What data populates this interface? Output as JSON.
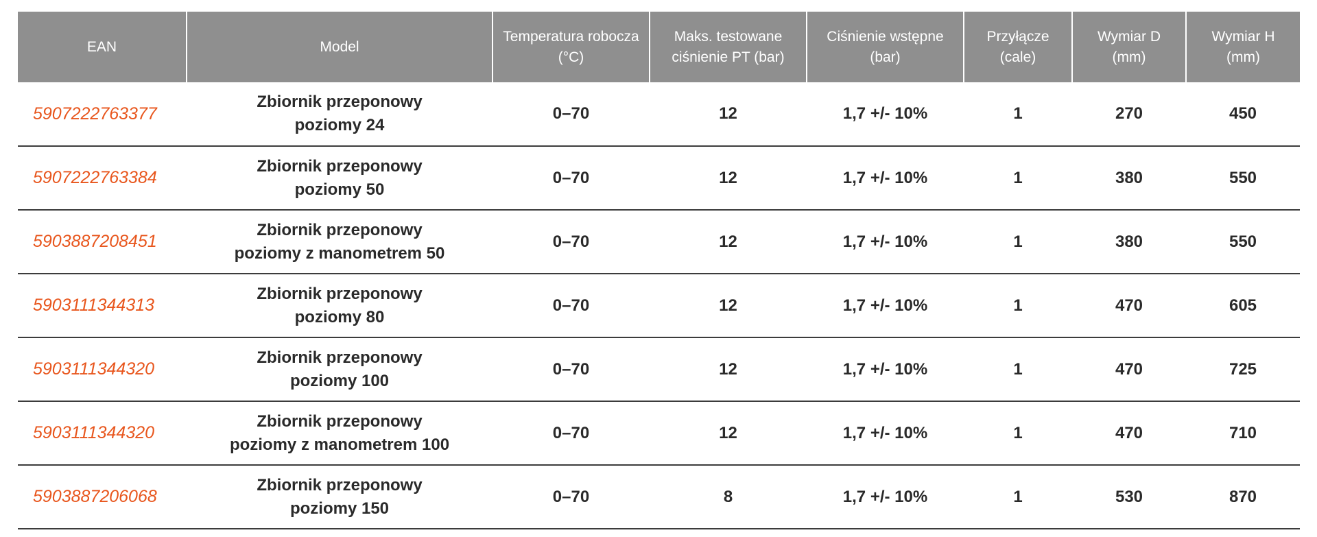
{
  "table": {
    "headers": [
      {
        "line1": "EAN",
        "line2": ""
      },
      {
        "line1": "Model",
        "line2": ""
      },
      {
        "line1": "Temperatura robocza",
        "line2": "(°C)"
      },
      {
        "line1": "Maks. testowane",
        "line2": "ciśnienie PT (bar)"
      },
      {
        "line1": "Ciśnienie wstępne",
        "line2": "(bar)"
      },
      {
        "line1": "Przyłącze",
        "line2": "(cale)"
      },
      {
        "line1": "Wymiar D",
        "line2": "(mm)"
      },
      {
        "line1": "Wymiar H",
        "line2": "(mm)"
      }
    ],
    "rows": [
      {
        "ean": "5907222763377",
        "model_line1": "Zbiornik przeponowy",
        "model_line2": "poziomy 24",
        "temperature": "0–70",
        "max_pressure": "12",
        "pre_pressure": "1,7 +/- 10%",
        "connection": "1",
        "dim_d": "270",
        "dim_h": "450"
      },
      {
        "ean": "5907222763384",
        "model_line1": "Zbiornik przeponowy",
        "model_line2": "poziomy 50",
        "temperature": "0–70",
        "max_pressure": "12",
        "pre_pressure": "1,7 +/- 10%",
        "connection": "1",
        "dim_d": "380",
        "dim_h": "550"
      },
      {
        "ean": "5903887208451",
        "model_line1": "Zbiornik przeponowy",
        "model_line2": "poziomy z manometrem 50",
        "temperature": "0–70",
        "max_pressure": "12",
        "pre_pressure": "1,7 +/- 10%",
        "connection": "1",
        "dim_d": "380",
        "dim_h": "550"
      },
      {
        "ean": "5903111344313",
        "model_line1": "Zbiornik przeponowy",
        "model_line2": "poziomy 80",
        "temperature": "0–70",
        "max_pressure": "12",
        "pre_pressure": "1,7 +/- 10%",
        "connection": "1",
        "dim_d": "470",
        "dim_h": "605"
      },
      {
        "ean": "5903111344320",
        "model_line1": "Zbiornik przeponowy",
        "model_line2": "poziomy 100",
        "temperature": "0–70",
        "max_pressure": "12",
        "pre_pressure": "1,7 +/- 10%",
        "connection": "1",
        "dim_d": "470",
        "dim_h": "725"
      },
      {
        "ean": "5903111344320",
        "model_line1": "Zbiornik przeponowy",
        "model_line2": "poziomy z manometrem 100",
        "temperature": "0–70",
        "max_pressure": "12",
        "pre_pressure": "1,7 +/- 10%",
        "connection": "1",
        "dim_d": "470",
        "dim_h": "710"
      },
      {
        "ean": "5903887206068",
        "model_line1": "Zbiornik przeponowy",
        "model_line2": "poziomy 150",
        "temperature": "0–70",
        "max_pressure": "8",
        "pre_pressure": "1,7 +/- 10%",
        "connection": "1",
        "dim_d": "530",
        "dim_h": "870"
      }
    ]
  },
  "colors": {
    "header_bg": "#8f8f8f",
    "header_text": "#ffffff",
    "ean_text": "#e8561d",
    "body_text": "#2a2a2a",
    "row_border": "#3c3c3c"
  }
}
